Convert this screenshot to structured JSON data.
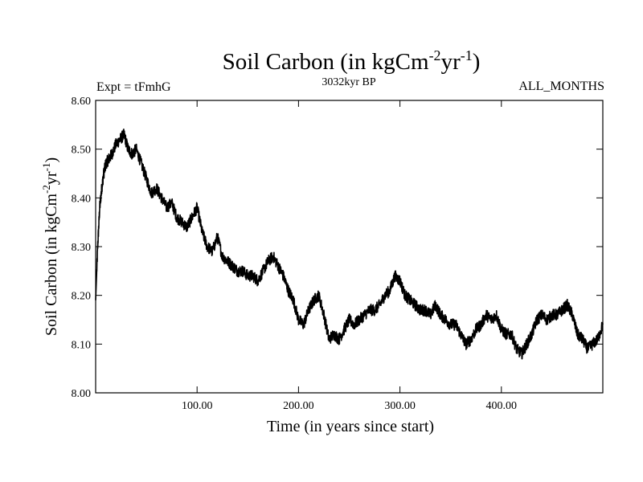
{
  "chart_data": {
    "type": "line",
    "title": {
      "base": "Soil Carbon (in kgCm",
      "sup1": "-2",
      "mid": "yr",
      "sup2": "-1",
      "end": ")"
    },
    "left_label": "Expt = tFmhG",
    "center_label": "3032kyr BP",
    "right_label": "ALL_MONTHS",
    "xlabel": "Time (in years since start)",
    "ylabel": {
      "base": "Soil Carbon (in kgCm",
      "sup1": "-2",
      "mid": "yr",
      "sup2": "-1",
      "end": ")"
    },
    "xlim": [
      0,
      500
    ],
    "ylim": [
      8.0,
      8.6
    ],
    "x_ticks": [
      100,
      200,
      300,
      400
    ],
    "x_tick_labels": [
      "100.00",
      "200.00",
      "300.00",
      "400.00"
    ],
    "y_ticks": [
      8.0,
      8.1,
      8.2,
      8.3,
      8.4,
      8.5,
      8.6
    ],
    "y_tick_labels": [
      "8.00",
      "8.10",
      "8.20",
      "8.30",
      "8.40",
      "8.50",
      "8.60"
    ],
    "line_color": "#000000",
    "noise_amplitude": 0.012,
    "series": [
      {
        "name": "Soil Carbon",
        "x": [
          0,
          2,
          4,
          6,
          8,
          10,
          13,
          16,
          20,
          24,
          28,
          32,
          36,
          40,
          45,
          50,
          55,
          60,
          65,
          70,
          75,
          80,
          85,
          90,
          95,
          100,
          105,
          110,
          115,
          120,
          125,
          130,
          135,
          140,
          145,
          150,
          155,
          160,
          165,
          170,
          175,
          180,
          185,
          190,
          195,
          200,
          205,
          210,
          215,
          220,
          225,
          230,
          235,
          240,
          245,
          250,
          255,
          260,
          265,
          270,
          275,
          280,
          285,
          290,
          295,
          300,
          305,
          310,
          315,
          320,
          325,
          330,
          335,
          340,
          345,
          350,
          355,
          360,
          365,
          370,
          375,
          380,
          385,
          390,
          395,
          400,
          405,
          410,
          415,
          420,
          425,
          430,
          435,
          440,
          445,
          450,
          455,
          460,
          465,
          470,
          475,
          480,
          485,
          490,
          495,
          500
        ],
        "values": [
          8.19,
          8.3,
          8.38,
          8.42,
          8.45,
          8.47,
          8.48,
          8.49,
          8.51,
          8.52,
          8.53,
          8.5,
          8.49,
          8.5,
          8.47,
          8.44,
          8.41,
          8.42,
          8.4,
          8.38,
          8.39,
          8.36,
          8.35,
          8.34,
          8.36,
          8.38,
          8.33,
          8.3,
          8.29,
          8.32,
          8.28,
          8.27,
          8.26,
          8.25,
          8.25,
          8.24,
          8.24,
          8.23,
          8.25,
          8.27,
          8.28,
          8.26,
          8.24,
          8.21,
          8.19,
          8.15,
          8.14,
          8.17,
          8.19,
          8.2,
          8.16,
          8.11,
          8.12,
          8.11,
          8.13,
          8.15,
          8.14,
          8.15,
          8.16,
          8.17,
          8.17,
          8.18,
          8.2,
          8.21,
          8.24,
          8.23,
          8.2,
          8.19,
          8.18,
          8.17,
          8.17,
          8.16,
          8.18,
          8.16,
          8.15,
          8.14,
          8.14,
          8.12,
          8.1,
          8.11,
          8.13,
          8.14,
          8.16,
          8.15,
          8.16,
          8.13,
          8.12,
          8.12,
          8.09,
          8.08,
          8.1,
          8.12,
          8.15,
          8.16,
          8.15,
          8.16,
          8.16,
          8.17,
          8.18,
          8.16,
          8.12,
          8.11,
          8.09,
          8.1,
          8.11,
          8.14
        ]
      }
    ]
  }
}
